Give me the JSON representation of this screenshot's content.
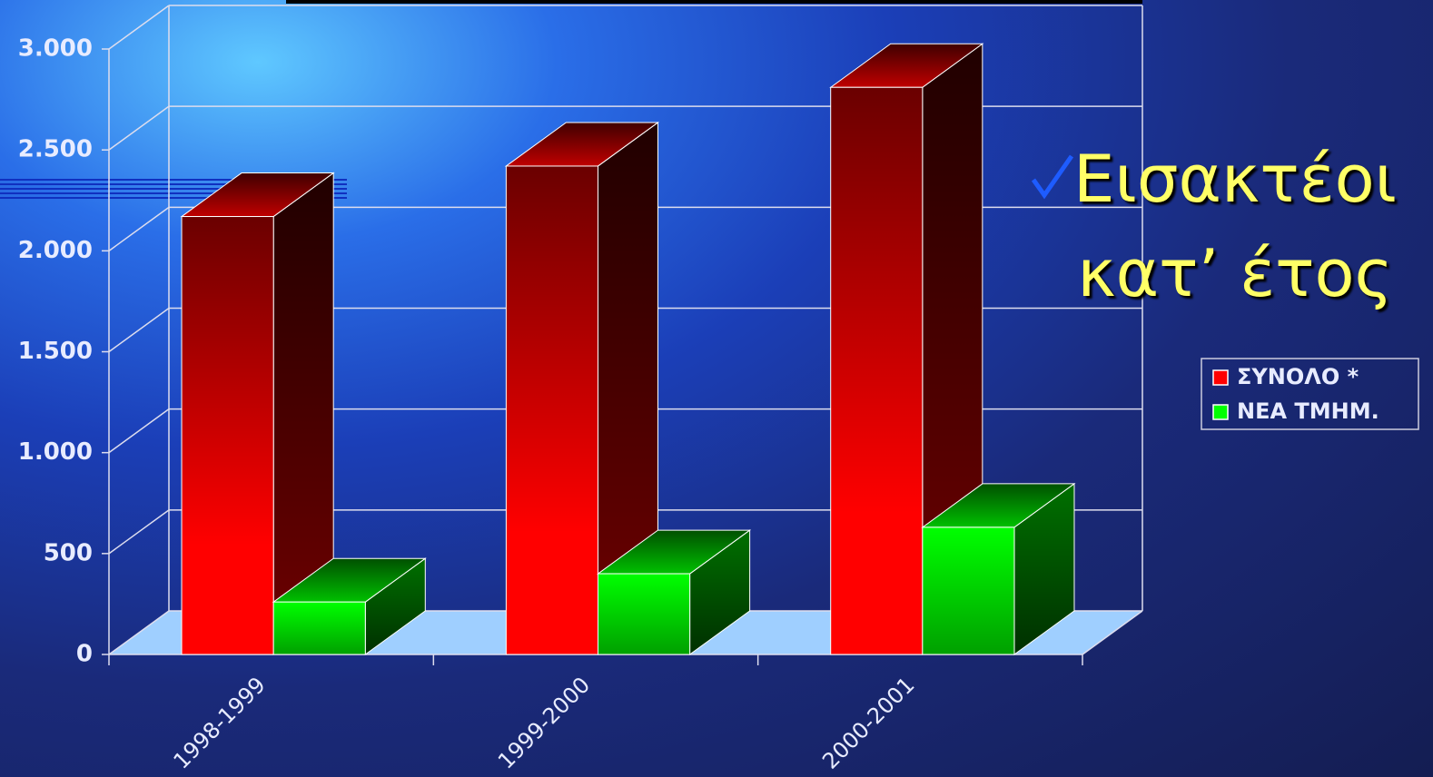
{
  "chart_data": {
    "type": "bar3d",
    "title": "Εισακτέοι κατ’ έτος",
    "categories": [
      "1998-1999",
      "1999-2000",
      "2000-2001"
    ],
    "series": [
      {
        "name": "ΣΥΝΟΛΟ *",
        "color": "#ff0000",
        "values": [
          2170,
          2420,
          2810
        ]
      },
      {
        "name": "ΝΕΑ ΤΜΗΜ.",
        "color": "#00ff00",
        "values": [
          260,
          400,
          630
        ]
      }
    ],
    "ylim": [
      0,
      3000
    ],
    "yticks": [
      0,
      500,
      {
        "value": 1000,
        "label": "1.000"
      },
      {
        "value": 1500,
        "label": "1.500"
      },
      {
        "value": 2000,
        "label": "2.000"
      },
      {
        "value": 2500,
        "label": "2.500"
      },
      {
        "value": 3000,
        "label": "3.000"
      }
    ],
    "grid": true,
    "legend": "right"
  }
}
